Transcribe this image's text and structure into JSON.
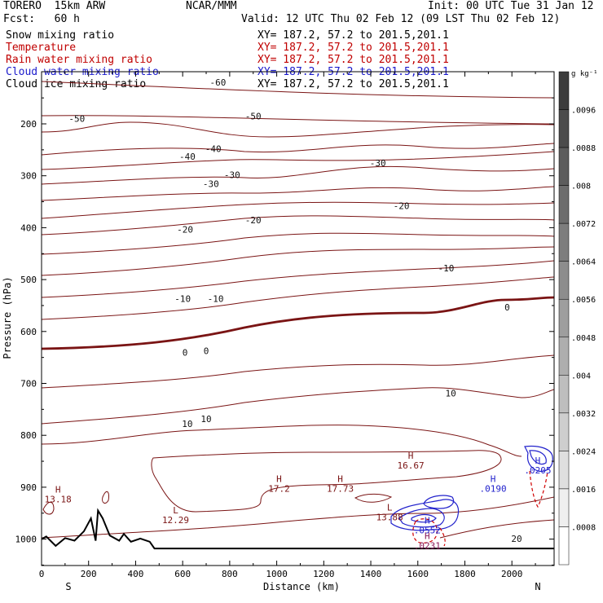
{
  "header": {
    "model": "TORERO  15km ARW",
    "center": "NCAR/MMM",
    "init": "Init: 00 UTC Tue 31 Jan 12",
    "fcst": "Fcst:   60 h",
    "valid": "Valid: 12 UTC Thu 02 Feb 12 (09 LST Thu 02 Feb 12)"
  },
  "fields": [
    {
      "name": "Snow mixing ratio",
      "xy": "XY= 187.2, 57.2 to 201.5,201.1",
      "color": "#000000"
    },
    {
      "name": "Temperature",
      "xy": "XY= 187.2, 57.2 to 201.5,201.1",
      "color": "#c00000"
    },
    {
      "name": "Rain water mixing ratio",
      "xy": "XY= 187.2, 57.2 to 201.5,201.1",
      "color": "#d00000"
    },
    {
      "name": "Cloud water mixing ratio",
      "xy": "XY= 187.2, 57.2 to 201.5,201.1",
      "color": "#1a1acc"
    },
    {
      "name": "Cloud ice mixing ratio",
      "xy": "XY= 187.2, 57.2 to 201.5,201.1",
      "color": "#000000"
    }
  ],
  "chart_data": {
    "type": "contour-cross-section",
    "xlabel": "Distance (km)",
    "ylabel": "Pressure (hPa)",
    "xlim": [
      0,
      2180
    ],
    "ylim": [
      1050,
      100
    ],
    "x_ticks": [
      0,
      200,
      400,
      600,
      800,
      1000,
      1200,
      1400,
      1600,
      1800,
      2000
    ],
    "y_ticks": [
      200,
      300,
      400,
      500,
      600,
      700,
      800,
      900,
      1000
    ],
    "side_left": "S",
    "side_right": "N",
    "colorbar": {
      "unit": "g kg⁻¹",
      "ticks": [
        ".0096",
        ".0088",
        ".008",
        ".0072",
        ".0064",
        ".0056",
        ".0048",
        ".004",
        ".0032",
        ".0024",
        ".0016",
        ".0008"
      ]
    },
    "temperature_contours": [
      {
        "label": "-60",
        "at": [
          [
            750,
            120
          ]
        ]
      },
      {
        "label": "-50",
        "at": [
          [
            150,
            190
          ],
          [
            900,
            185
          ]
        ]
      },
      {
        "label": "-40",
        "at": [
          [
            620,
            263
          ],
          [
            730,
            248
          ]
        ]
      },
      {
        "label": "-30",
        "at": [
          [
            720,
            315
          ],
          [
            810,
            298
          ],
          [
            1430,
            275
          ]
        ]
      },
      {
        "label": "-20",
        "at": [
          [
            610,
            403
          ],
          [
            900,
            385
          ],
          [
            1530,
            358
          ]
        ]
      },
      {
        "label": "-10",
        "at": [
          [
            600,
            537
          ],
          [
            740,
            537
          ],
          [
            1720,
            478
          ]
        ]
      },
      {
        "label": "0",
        "at": [
          [
            610,
            640
          ],
          [
            700,
            637
          ],
          [
            1980,
            553
          ]
        ]
      },
      {
        "label": "10",
        "at": [
          [
            620,
            778
          ],
          [
            700,
            768
          ],
          [
            1740,
            719
          ]
        ]
      },
      {
        "label": "20",
        "at": [
          [
            2020,
            999
          ]
        ]
      }
    ],
    "extrema": [
      {
        "kind": "H",
        "value": "13.18",
        "x": 70,
        "p": 910
      },
      {
        "kind": "L",
        "value": "12.29",
        "x": 570,
        "p": 950
      },
      {
        "kind": "H",
        "value": "17.2",
        "x": 1010,
        "p": 890
      },
      {
        "kind": "H",
        "value": "17.73",
        "x": 1270,
        "p": 890
      },
      {
        "kind": "L",
        "value": "13.88",
        "x": 1480,
        "p": 945
      },
      {
        "kind": "H",
        "value": "16.67",
        "x": 1570,
        "p": 845
      },
      {
        "kind": "H",
        "value": ".0190",
        "x": 1920,
        "p": 890
      },
      {
        "kind": "H",
        "value": ".0205",
        "x": 2110,
        "p": 855
      },
      {
        "kind": "H",
        "value": ".0552",
        "x": 1640,
        "p": 970
      },
      {
        "kind": "H",
        "value": ".0231",
        "x": 1640,
        "p": 1000
      }
    ],
    "terrain_profile": [
      [
        0,
        1000
      ],
      [
        20,
        995
      ],
      [
        60,
        1013
      ],
      [
        100,
        998
      ],
      [
        140,
        1003
      ],
      [
        180,
        985
      ],
      [
        210,
        960
      ],
      [
        230,
        1003
      ],
      [
        240,
        945
      ],
      [
        260,
        960
      ],
      [
        290,
        993
      ],
      [
        330,
        1003
      ],
      [
        350,
        990
      ],
      [
        380,
        1005
      ],
      [
        420,
        999
      ],
      [
        460,
        1005
      ],
      [
        480,
        1018
      ],
      [
        2180,
        1018
      ]
    ]
  }
}
